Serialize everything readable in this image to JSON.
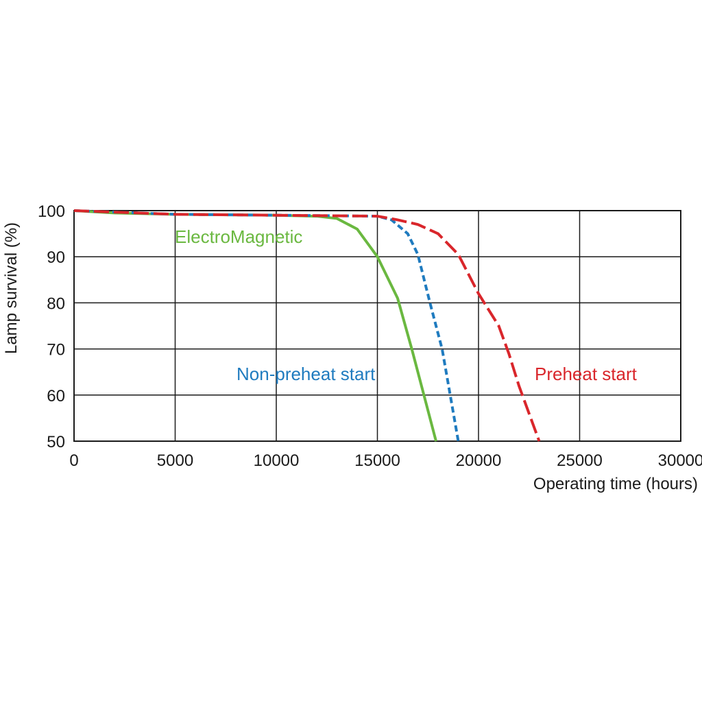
{
  "chart_data": {
    "type": "line",
    "xlabel": "Operating time (hours)",
    "ylabel": "Lamp survival  (%)",
    "xlim": [
      0,
      30000
    ],
    "xticks": [
      0,
      5000,
      10000,
      15000,
      20000,
      25000,
      30000
    ],
    "ylim": [
      50,
      100
    ],
    "yticks": [
      50,
      60,
      70,
      80,
      90,
      100
    ],
    "grid": true,
    "series": [
      {
        "name": "ElectroMagnetic",
        "color": "#6ab840",
        "style": "solid",
        "x": [
          0,
          2000,
          5000,
          10000,
          12000,
          13000,
          14000,
          15000,
          16000,
          16700,
          17300,
          17900
        ],
        "values": [
          100,
          99.5,
          99.2,
          99,
          98.8,
          98.3,
          96,
          90,
          81,
          70,
          60,
          50
        ]
      },
      {
        "name": "Non-preheat start",
        "color": "#1f7bbf",
        "style": "dashed",
        "x": [
          0,
          5000,
          10000,
          15000,
          15700,
          16500,
          17000,
          17600,
          18200,
          18600,
          19000
        ],
        "values": [
          100,
          99.2,
          99,
          98.8,
          98,
          95,
          90.5,
          80,
          70,
          60,
          50
        ]
      },
      {
        "name": "Preheat start",
        "color": "#d9262b",
        "style": "longdash",
        "x": [
          0,
          5000,
          10000,
          15000,
          16000,
          17000,
          18000,
          19000,
          20000,
          21000,
          21500,
          22000,
          22500,
          23000
        ],
        "values": [
          100,
          99.2,
          99,
          98.8,
          98,
          97,
          95,
          90.5,
          82,
          75,
          69,
          62,
          56,
          50
        ]
      }
    ]
  }
}
